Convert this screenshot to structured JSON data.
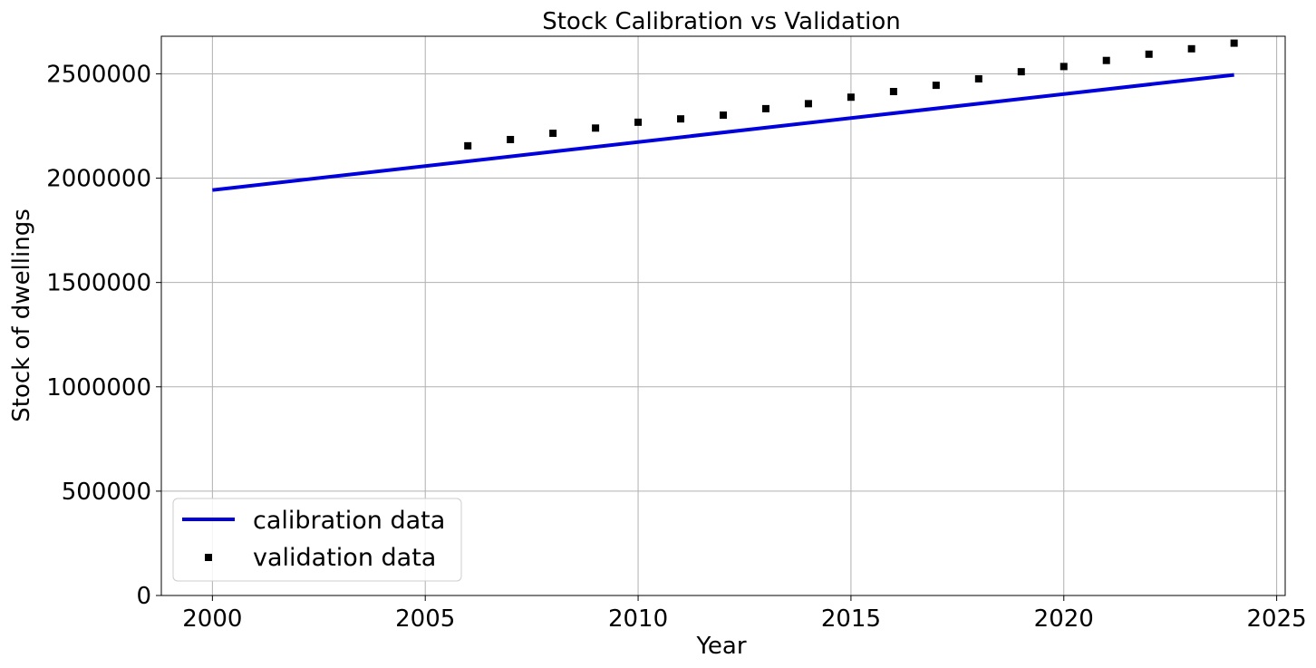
{
  "chart_data": {
    "type": "line",
    "title": "Stock Calibration vs Validation",
    "xlabel": "Year",
    "ylabel": "Stock of dwellings",
    "xlim": [
      1998.8,
      2025.2
    ],
    "ylim": [
      0,
      2680000
    ],
    "xticks": [
      2000,
      2005,
      2010,
      2015,
      2020,
      2025
    ],
    "yticks": [
      0,
      500000,
      1000000,
      1500000,
      2000000,
      2500000
    ],
    "grid": true,
    "legend_position": "lower-left",
    "series": [
      {
        "name": "calibration data",
        "style": "line",
        "color": "#0000dd",
        "x": [
          2000,
          2024
        ],
        "y": [
          1943000,
          2495000
        ]
      },
      {
        "name": "validation data",
        "style": "square-markers",
        "color": "#000000",
        "x": [
          2006,
          2007,
          2008,
          2009,
          2010,
          2011,
          2012,
          2013,
          2014,
          2015,
          2016,
          2017,
          2018,
          2019,
          2020,
          2021,
          2022,
          2023,
          2024
        ],
        "y": [
          2155000,
          2185000,
          2215000,
          2240000,
          2268000,
          2284000,
          2302000,
          2333000,
          2357000,
          2388000,
          2415000,
          2445000,
          2476000,
          2510000,
          2535000,
          2564000,
          2594000,
          2620000,
          2647000
        ]
      }
    ]
  }
}
